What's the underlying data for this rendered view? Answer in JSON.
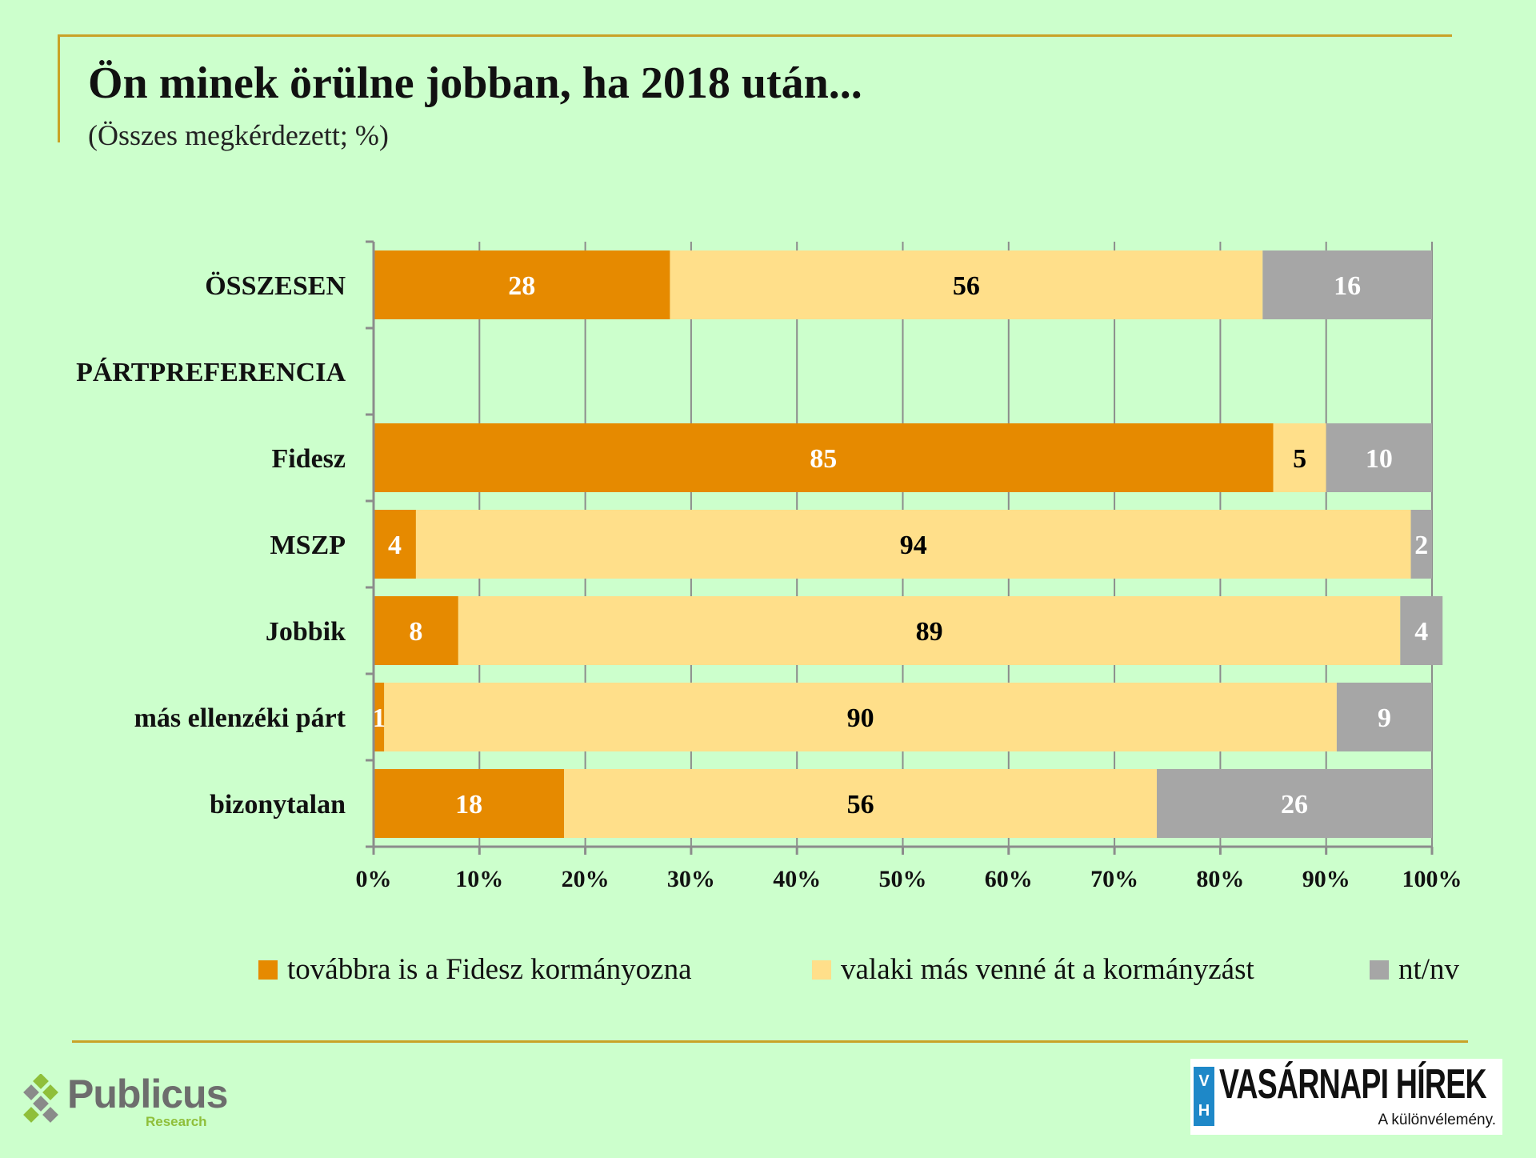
{
  "header": {
    "title": "Ön minek örülne jobban, ha 2018 után...",
    "subtitle": "(Összes megkérdezett; %)"
  },
  "chart_data": {
    "type": "bar",
    "orientation": "horizontal",
    "stacked": true,
    "categories": [
      "ÖSSZESEN",
      "PÁRTPREFERENCIA",
      "Fidesz",
      "MSZP",
      "Jobbik",
      "más ellenzéki párt",
      "bizonytalan"
    ],
    "series": [
      {
        "name": "továbbra is a Fidesz kormányozna",
        "color": "#e68a00",
        "label_color": "#ffffff",
        "values": [
          28,
          null,
          85,
          4,
          8,
          1,
          18
        ]
      },
      {
        "name": "valaki más venné át a kormányzást",
        "color": "#ffdf8a",
        "label_color": "#000000",
        "values": [
          56,
          null,
          5,
          94,
          89,
          90,
          56
        ]
      },
      {
        "name": "nt/nv",
        "color": "#a6a6a6",
        "label_color": "#ffffff",
        "values": [
          16,
          null,
          10,
          2,
          4,
          9,
          26
        ]
      }
    ],
    "xlim": [
      0,
      100
    ],
    "xticks": [
      "0%",
      "10%",
      "20%",
      "30%",
      "40%",
      "50%",
      "60%",
      "70%",
      "80%",
      "90%",
      "100%"
    ],
    "grid": true,
    "legend_position": "bottom"
  },
  "logos": {
    "publicus_name": "Publicus",
    "publicus_sub": "Research",
    "vh_badge_top": "V",
    "vh_badge_bottom": "H",
    "vh_name": "VASÁRNAPI HÍREK",
    "vh_tagline": "A különvélemény."
  }
}
